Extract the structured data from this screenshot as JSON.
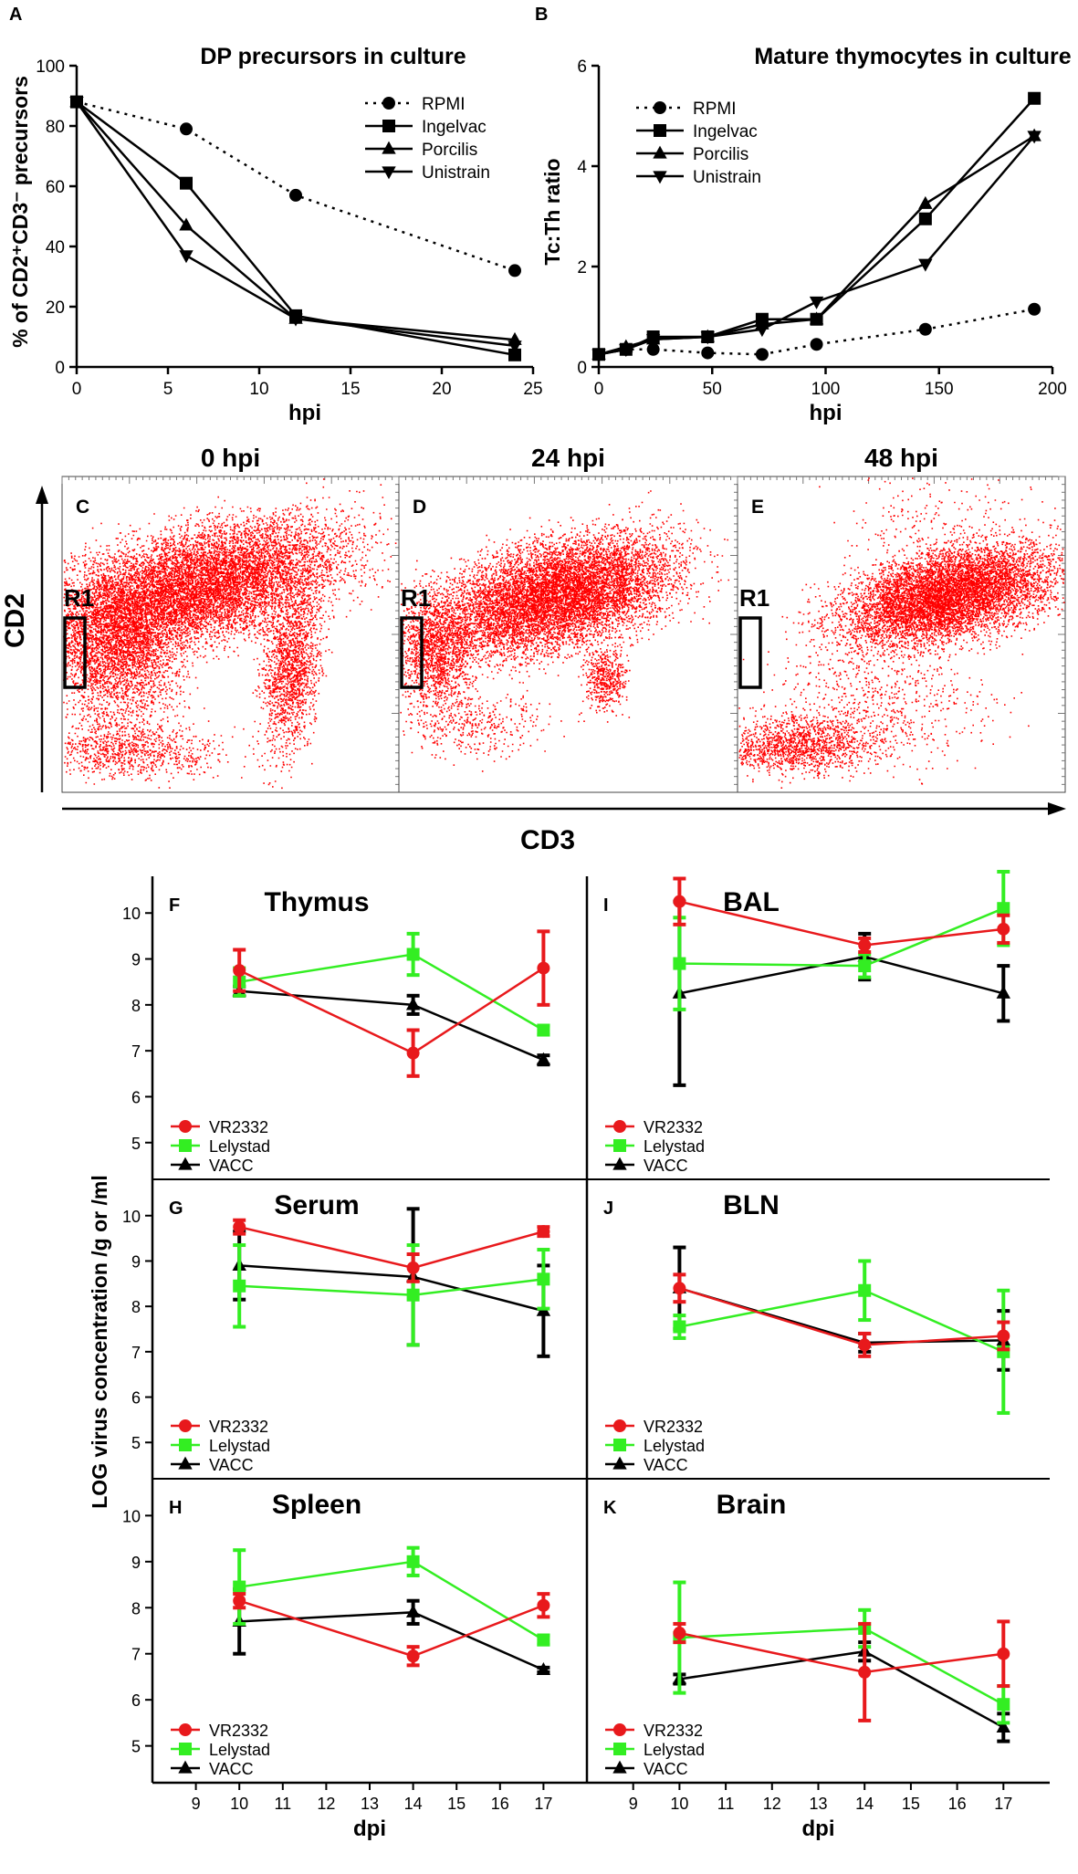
{
  "chart_data": [
    {
      "id": "A",
      "panel_letter": "A",
      "type": "line",
      "title": "DP precursors in culture",
      "xlabel": "hpi",
      "ylabel": "% of CD2⁺CD3⁻ precursors",
      "xlim": [
        0,
        25
      ],
      "ylim": [
        0,
        100
      ],
      "xticks": [
        0,
        5,
        10,
        15,
        20,
        25
      ],
      "yticks": [
        0,
        20,
        40,
        60,
        80,
        100
      ],
      "legend": "top-right",
      "series": [
        {
          "name": "RPMI",
          "marker": "circle",
          "dashed": true,
          "x": [
            0,
            6,
            12,
            24
          ],
          "y": [
            88,
            79,
            57,
            32
          ]
        },
        {
          "name": "Ingelvac",
          "marker": "square",
          "x": [
            0,
            6,
            12,
            24
          ],
          "y": [
            88,
            61,
            17,
            4
          ]
        },
        {
          "name": "Porcilis",
          "marker": "triangle-up",
          "x": [
            0,
            6,
            12,
            24
          ],
          "y": [
            88,
            47,
            16,
            9
          ]
        },
        {
          "name": "Unistrain",
          "marker": "triangle-down",
          "x": [
            0,
            6,
            12,
            24
          ],
          "y": [
            88,
            37,
            16,
            7
          ]
        }
      ]
    },
    {
      "id": "B",
      "panel_letter": "B",
      "type": "line",
      "title": "Mature thymocytes in culture",
      "xlabel": "hpi",
      "ylabel": "Tc:Th ratio",
      "xlim": [
        0,
        200
      ],
      "ylim": [
        0,
        6
      ],
      "xticks": [
        0,
        50,
        100,
        150,
        200
      ],
      "yticks": [
        0,
        2,
        4,
        6
      ],
      "legend": "top-left",
      "series": [
        {
          "name": "RPMI",
          "marker": "circle",
          "dashed": true,
          "x": [
            0,
            12,
            24,
            48,
            72,
            96,
            144,
            192
          ],
          "y": [
            0.25,
            0.35,
            0.35,
            0.28,
            0.25,
            0.45,
            0.75,
            1.15
          ]
        },
        {
          "name": "Ingelvac",
          "marker": "square",
          "x": [
            0,
            12,
            24,
            48,
            72,
            96,
            144,
            192
          ],
          "y": [
            0.25,
            0.35,
            0.6,
            0.6,
            0.95,
            0.95,
            2.95,
            5.35
          ]
        },
        {
          "name": "Porcilis",
          "marker": "triangle-up",
          "x": [
            0,
            12,
            24,
            48,
            72,
            96,
            144,
            192
          ],
          "y": [
            0.25,
            0.4,
            0.55,
            0.6,
            0.85,
            0.95,
            3.25,
            4.6
          ]
        },
        {
          "name": "Unistrain",
          "marker": "triangle-down",
          "x": [
            0,
            12,
            24,
            48,
            72,
            96,
            144,
            192
          ],
          "y": [
            0.25,
            0.35,
            0.55,
            0.6,
            0.75,
            1.3,
            2.05,
            4.6
          ]
        }
      ]
    },
    {
      "id": "flow",
      "type": "scatter",
      "xlabel": "CD3",
      "ylabel": "CD2",
      "panels": [
        {
          "letter": "C",
          "title": "0 hpi",
          "gate": "R1",
          "pattern": "broad"
        },
        {
          "letter": "D",
          "title": "24 hpi",
          "gate": "R1",
          "pattern": "medium"
        },
        {
          "letter": "E",
          "title": "48 hpi",
          "gate": "R1",
          "pattern": "mature"
        }
      ]
    },
    {
      "id": "virus",
      "type": "line",
      "ylabel": "LOG virus concentration /g or /ml",
      "xlabel": "dpi",
      "xlim": [
        8,
        18
      ],
      "ylim": [
        4.2,
        10.8
      ],
      "xticks": [
        9,
        10,
        11,
        12,
        13,
        14,
        15,
        16,
        17
      ],
      "yticks": [
        5,
        6,
        7,
        8,
        9,
        10
      ],
      "legend": "bottom-left",
      "colors": {
        "VR2332": "#e8191c",
        "Lelystad": "#33ee22",
        "VACC": "#000000"
      },
      "series_names": [
        "VR2332",
        "Lelystad",
        "VACC"
      ],
      "panels": [
        {
          "letter": "F",
          "title": "Thymus",
          "x": [
            10,
            14,
            17
          ],
          "series": [
            {
              "name": "VR2332",
              "y": [
                8.75,
                6.95,
                8.8
              ],
              "err": [
                0.45,
                0.5,
                0.8
              ]
            },
            {
              "name": "Lelystad",
              "y": [
                8.5,
                9.1,
                7.45
              ],
              "err": [
                0.3,
                0.45,
                0.1
              ]
            },
            {
              "name": "VACC",
              "y": [
                8.3,
                8.0,
                6.8
              ],
              "err": [
                0.1,
                0.2,
                0.1
              ]
            }
          ]
        },
        {
          "letter": "I",
          "title": "BAL",
          "x": [
            10,
            14,
            17
          ],
          "series": [
            {
              "name": "VR2332",
              "y": [
                10.25,
                9.3,
                9.65
              ],
              "err": [
                0.5,
                0.15,
                0.3
              ]
            },
            {
              "name": "Lelystad",
              "y": [
                8.9,
                8.85,
                10.1
              ],
              "err": [
                1.0,
                0.25,
                0.8
              ]
            },
            {
              "name": "VACC",
              "y": [
                8.25,
                9.05,
                8.25
              ],
              "err": [
                2.0,
                0.5,
                0.6
              ]
            }
          ]
        },
        {
          "letter": "G",
          "title": "Serum",
          "x": [
            10,
            14,
            17
          ],
          "series": [
            {
              "name": "VR2332",
              "y": [
                9.75,
                8.85,
                9.65
              ],
              "err": [
                0.15,
                0.3,
                0.1
              ]
            },
            {
              "name": "Lelystad",
              "y": [
                8.45,
                8.25,
                8.6
              ],
              "err": [
                0.9,
                1.1,
                0.65
              ]
            },
            {
              "name": "VACC",
              "y": [
                8.9,
                8.65,
                7.9
              ],
              "err": [
                0.75,
                1.5,
                1.0
              ]
            }
          ]
        },
        {
          "letter": "J",
          "title": "BLN",
          "x": [
            10,
            14,
            17
          ],
          "series": [
            {
              "name": "VR2332",
              "y": [
                8.4,
                7.15,
                7.35
              ],
              "err": [
                0.3,
                0.25,
                0.3
              ]
            },
            {
              "name": "Lelystad",
              "y": [
                7.55,
                8.35,
                7.0
              ],
              "err": [
                0.25,
                0.65,
                1.35
              ]
            },
            {
              "name": "VACC",
              "y": [
                8.4,
                7.2,
                7.25
              ],
              "err": [
                0.9,
                0.2,
                0.65
              ]
            }
          ]
        },
        {
          "letter": "H",
          "title": "Spleen",
          "x": [
            10,
            14,
            17
          ],
          "series": [
            {
              "name": "VR2332",
              "y": [
                8.15,
                6.95,
                8.05
              ],
              "err": [
                0.15,
                0.2,
                0.25
              ]
            },
            {
              "name": "Lelystad",
              "y": [
                8.45,
                9.0,
                7.3
              ],
              "err": [
                0.8,
                0.3,
                0.1
              ]
            },
            {
              "name": "VACC",
              "y": [
                7.7,
                7.9,
                6.65
              ],
              "err": [
                0.7,
                0.25,
                0.05
              ]
            }
          ]
        },
        {
          "letter": "K",
          "title": "Brain",
          "x": [
            10,
            14,
            17
          ],
          "series": [
            {
              "name": "VR2332",
              "y": [
                7.45,
                6.6,
                7.0
              ],
              "err": [
                0.2,
                1.05,
                0.7
              ]
            },
            {
              "name": "Lelystad",
              "y": [
                7.35,
                7.55,
                5.9
              ],
              "err": [
                1.2,
                0.4,
                0.4
              ]
            },
            {
              "name": "VACC",
              "y": [
                6.45,
                7.05,
                5.4
              ],
              "err": [
                0.1,
                0.2,
                0.3
              ]
            }
          ]
        }
      ]
    }
  ]
}
